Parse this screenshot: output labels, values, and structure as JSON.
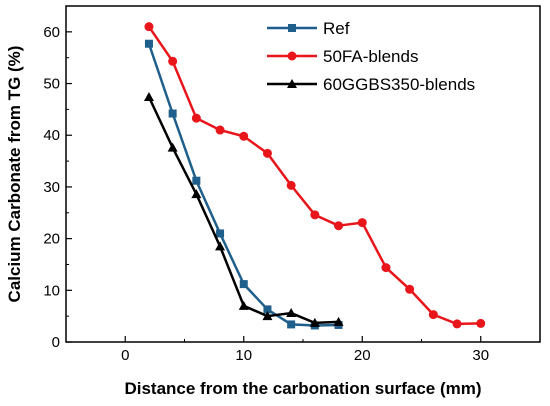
{
  "chart_data": {
    "type": "line",
    "xlabel": "Distance from the carbonation surface (mm)",
    "ylabel": "Calcium Carbonate from TG (%)",
    "xlim": [
      -5,
      35
    ],
    "ylim": [
      0,
      65
    ],
    "xticks": [
      0,
      10,
      20,
      30
    ],
    "yticks": [
      0,
      10,
      20,
      30,
      40,
      50,
      60
    ],
    "grid": false,
    "legend_position": "top-right",
    "series": [
      {
        "name": "Ref",
        "color": "#1f5f8b",
        "marker": "square",
        "x": [
          2,
          4,
          6,
          8,
          10,
          12,
          14,
          16,
          18
        ],
        "y": [
          57.7,
          44.2,
          31.2,
          21.0,
          11.2,
          6.3,
          3.4,
          3.2,
          3.3
        ]
      },
      {
        "name": "50FA-blends",
        "color": "#e8151b",
        "marker": "circle",
        "x": [
          2,
          4,
          6,
          8,
          10,
          12,
          14,
          16,
          18,
          20,
          22,
          24,
          26,
          28,
          30
        ],
        "y": [
          61.0,
          54.3,
          43.3,
          41.0,
          39.8,
          36.5,
          30.3,
          24.6,
          22.5,
          23.1,
          14.4,
          10.2,
          5.3,
          3.5,
          3.6
        ]
      },
      {
        "name": "60GGBS350-blends",
        "color": "#000000",
        "marker": "triangle",
        "x": [
          2,
          4,
          6,
          8,
          10,
          12,
          14,
          16,
          18
        ],
        "y": [
          47.4,
          37.6,
          28.6,
          18.5,
          7.0,
          5.0,
          5.6,
          3.7,
          3.9
        ]
      }
    ]
  }
}
